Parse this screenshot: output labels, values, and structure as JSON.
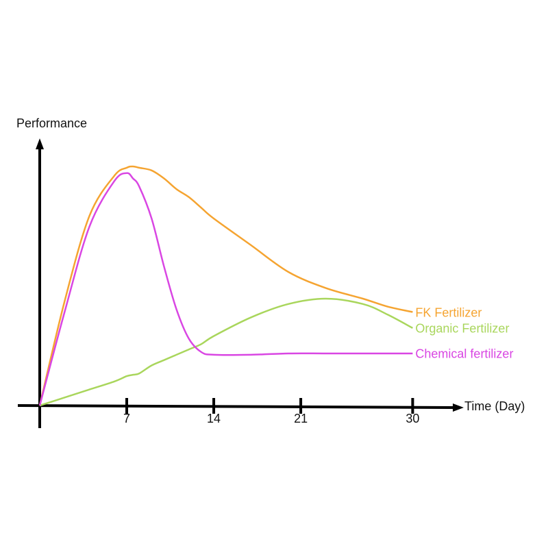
{
  "chart_data": {
    "type": "line",
    "y_label": "Performance",
    "x_label": "Time (Day)",
    "x": [
      0,
      2,
      4,
      6,
      7,
      7.5,
      8,
      9,
      10,
      11,
      12,
      13,
      14,
      17,
      20,
      23,
      26,
      28,
      30
    ],
    "xlim": [
      0,
      34
    ],
    "xticks": [
      7,
      14,
      21,
      30
    ],
    "ylim": [
      0,
      100
    ],
    "series": [
      {
        "name": "FK Fertilizer",
        "color": "#f5a431",
        "values": [
          0,
          39,
          71,
          86,
          89,
          89.5,
          89,
          88,
          85,
          81,
          78,
          74,
          70,
          60,
          50,
          44,
          40,
          37,
          35
        ]
      },
      {
        "name": "Organic Fertilizer",
        "color": "#a9d65c",
        "values": [
          0,
          3,
          6,
          9,
          11,
          11.5,
          12,
          15,
          17,
          19,
          21,
          23,
          26,
          33,
          38,
          40,
          38,
          34,
          29
        ]
      },
      {
        "name": "Chemical fertilizer",
        "color": "#d946e3",
        "values": [
          0,
          35,
          67,
          84,
          87,
          85,
          82,
          70,
          52,
          36,
          25,
          20,
          19,
          19,
          19.5,
          19.5,
          19.5,
          19.5,
          19.5
        ]
      }
    ]
  }
}
